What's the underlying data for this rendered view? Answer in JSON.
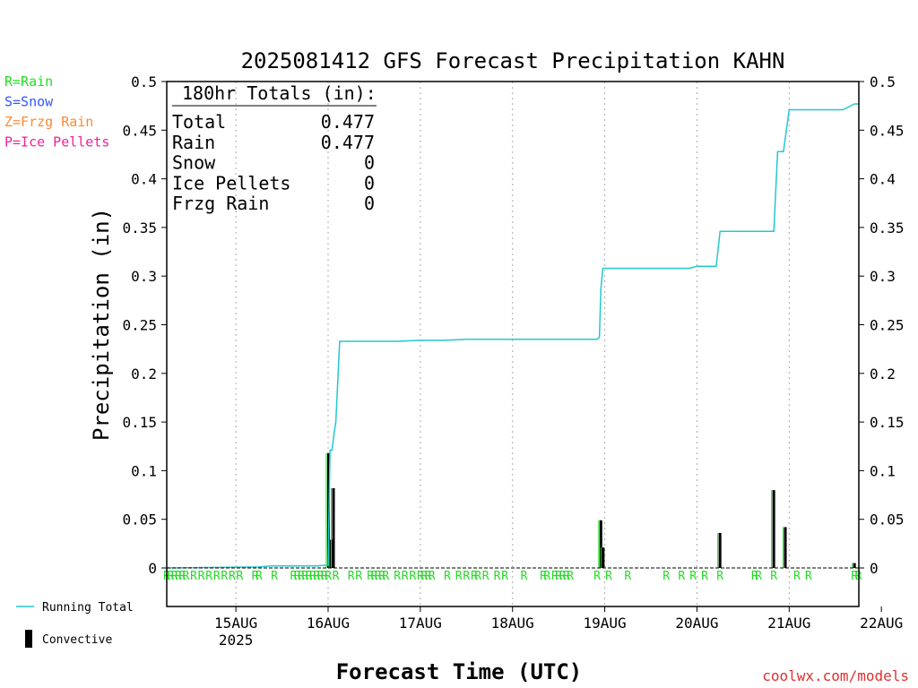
{
  "chart_data": {
    "type": "line",
    "title": "2025081412 GFS Forecast Precipitation KAHN",
    "xlabel": "Forecast Time (UTC)",
    "ylabel": "Precipitation (in)",
    "ylim": [
      0,
      0.5
    ],
    "yticks": [
      "0",
      "0.05",
      "0.1",
      "0.15",
      "0.2",
      "0.25",
      "0.3",
      "0.35",
      "0.4",
      "0.45",
      "0.5"
    ],
    "xlim_hours": [
      -6,
      174
    ],
    "xticks": [
      {
        "h": 12,
        "label": "15AUG",
        "sub": "2025"
      },
      {
        "h": 36,
        "label": "16AUG",
        "sub": ""
      },
      {
        "h": 60,
        "label": "17AUG",
        "sub": ""
      },
      {
        "h": 84,
        "label": "18AUG",
        "sub": ""
      },
      {
        "h": 108,
        "label": "19AUG",
        "sub": ""
      },
      {
        "h": 132,
        "label": "20AUG",
        "sub": ""
      },
      {
        "h": 156,
        "label": "21AUG",
        "sub": ""
      },
      {
        "h": 180,
        "label": "22AUG",
        "sub": ""
      }
    ],
    "grid": "dotted vertical at day boundaries",
    "type_legend": [
      {
        "text": "R=Rain",
        "color": "#22dd22"
      },
      {
        "text": "S=Snow",
        "color": "#3355ff"
      },
      {
        "text": "Z=Frzg Rain",
        "color": "#ff8833"
      },
      {
        "text": "P=Ice Pellets",
        "color": "#ee2299"
      }
    ],
    "series": [
      {
        "name": "Running Total",
        "color": "#22c8d0",
        "x": [
          -6,
          18,
          21,
          33,
          36,
          36.5,
          37,
          37.6,
          38,
          39,
          40,
          48,
          54,
          60,
          66,
          72,
          84,
          96,
          106,
          106.6,
          107,
          107.5,
          108,
          110,
          120,
          130,
          132,
          134,
          137,
          138,
          150,
          152,
          153,
          153.5,
          154.5,
          156,
          162,
          168,
          170,
          173,
          174
        ],
        "y": [
          0,
          0.001,
          0.002,
          0.002,
          0.003,
          0.121,
          0.121,
          0.14,
          0.15,
          0.233,
          0.233,
          0.233,
          0.233,
          0.234,
          0.234,
          0.235,
          0.235,
          0.235,
          0.235,
          0.237,
          0.287,
          0.308,
          0.308,
          0.308,
          0.308,
          0.308,
          0.31,
          0.31,
          0.31,
          0.346,
          0.346,
          0.346,
          0.428,
          0.428,
          0.428,
          0.471,
          0.471,
          0.471,
          0.471,
          0.477,
          0.477
        ]
      }
    ],
    "convective": {
      "name": "Convective",
      "bars": [
        {
          "x": 36.1,
          "y": 0.118
        },
        {
          "x": 36.8,
          "y": 0.029
        },
        {
          "x": 37.4,
          "y": 0.082
        },
        {
          "x": 107.0,
          "y": 0.049
        },
        {
          "x": 107.6,
          "y": 0.021
        },
        {
          "x": 138.0,
          "y": 0.036
        },
        {
          "x": 152.0,
          "y": 0.08
        },
        {
          "x": 155.0,
          "y": 0.042
        },
        {
          "x": 173.0,
          "y": 0.005
        }
      ]
    },
    "precip_type_letters": {
      "color": "#22dd22",
      "hours": [
        -6,
        -5,
        -4,
        -3,
        -2,
        -1,
        1,
        3,
        5,
        7,
        9,
        11,
        13,
        17,
        18,
        22,
        27,
        28,
        29,
        30,
        31,
        32,
        33,
        34,
        35,
        36,
        38,
        42,
        44,
        47,
        48,
        49,
        50,
        51,
        54,
        56,
        58,
        60,
        61,
        62,
        63,
        67,
        70,
        72,
        74,
        75,
        77,
        80,
        82,
        87,
        92,
        93,
        95,
        96,
        97,
        98,
        99,
        106,
        109,
        114,
        124,
        128,
        131,
        134,
        138,
        147,
        148,
        152,
        158,
        161,
        173,
        174
      ]
    },
    "legend": {
      "position": "bottom-left",
      "line": "Running Total",
      "bar": "Convective"
    }
  },
  "totals_box": {
    "header": "180hr Totals (in):",
    "rows": [
      {
        "label": "Total",
        "value": "0.477"
      },
      {
        "label": "Rain",
        "value": "0.477"
      },
      {
        "label": "Snow",
        "value": "0"
      },
      {
        "label": "Ice Pellets",
        "value": "0"
      },
      {
        "label": "Frzg Rain",
        "value": "0"
      }
    ]
  },
  "credit": "coolwx.com/models"
}
